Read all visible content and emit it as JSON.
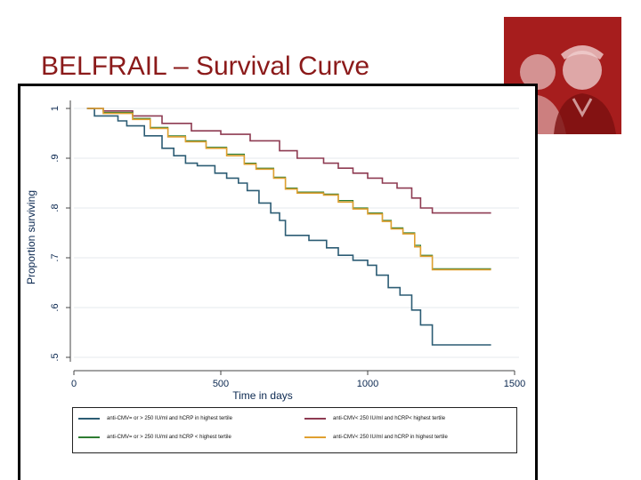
{
  "slide": {
    "title": "BELFRAIL – Survival Curve"
  },
  "photo": {
    "subject": "elderly-couple-photo",
    "tint": "#9c1a1a"
  },
  "colors": {
    "title": "#8b1a1a",
    "series_blue": "#2c5c74",
    "series_maroon": "#8e3b52",
    "series_green": "#2e7d32",
    "series_orange": "#e0a030"
  },
  "chart_data": {
    "type": "line",
    "step": true,
    "xlabel": "Time in days",
    "ylabel": "Proportion surviving",
    "xlim": [
      0,
      1500
    ],
    "ylim": [
      0.5,
      1
    ],
    "x_ticks": [
      0,
      500,
      1000,
      1500
    ],
    "y_ticks": [
      0.5,
      0.6,
      0.7,
      0.8,
      0.9,
      1
    ],
    "x_tick_labels": [
      "0",
      "500",
      "1000",
      "1500"
    ],
    "y_tick_labels": [
      ".5",
      ".6",
      ".7",
      ".8",
      ".9",
      "1"
    ],
    "grid": "horizontal",
    "legend_position": "bottom",
    "series": [
      {
        "name": "anti-CMV= or > 250 IU/ml and hCRP in highest tertile",
        "color": "#2c5c74",
        "points": [
          [
            45,
            1.0
          ],
          [
            70,
            0.985
          ],
          [
            150,
            0.975
          ],
          [
            180,
            0.965
          ],
          [
            240,
            0.945
          ],
          [
            300,
            0.92
          ],
          [
            340,
            0.905
          ],
          [
            380,
            0.89
          ],
          [
            420,
            0.885
          ],
          [
            480,
            0.87
          ],
          [
            520,
            0.86
          ],
          [
            560,
            0.85
          ],
          [
            590,
            0.835
          ],
          [
            630,
            0.81
          ],
          [
            670,
            0.79
          ],
          [
            700,
            0.775
          ],
          [
            720,
            0.745
          ],
          [
            800,
            0.735
          ],
          [
            860,
            0.72
          ],
          [
            900,
            0.705
          ],
          [
            950,
            0.695
          ],
          [
            1000,
            0.685
          ],
          [
            1030,
            0.665
          ],
          [
            1070,
            0.64
          ],
          [
            1110,
            0.625
          ],
          [
            1150,
            0.595
          ],
          [
            1180,
            0.565
          ],
          [
            1220,
            0.525
          ],
          [
            1420,
            0.525
          ]
        ]
      },
      {
        "name": "anti-CMV< 250 IU/ml and hCRP< highest tertile",
        "color": "#8e3b52",
        "points": [
          [
            45,
            1.0
          ],
          [
            100,
            0.995
          ],
          [
            200,
            0.985
          ],
          [
            300,
            0.97
          ],
          [
            400,
            0.955
          ],
          [
            500,
            0.948
          ],
          [
            600,
            0.935
          ],
          [
            700,
            0.915
          ],
          [
            760,
            0.9
          ],
          [
            850,
            0.89
          ],
          [
            900,
            0.88
          ],
          [
            950,
            0.87
          ],
          [
            1000,
            0.86
          ],
          [
            1050,
            0.85
          ],
          [
            1100,
            0.84
          ],
          [
            1150,
            0.82
          ],
          [
            1180,
            0.8
          ],
          [
            1220,
            0.79
          ],
          [
            1420,
            0.79
          ]
        ]
      },
      {
        "name": "anti-CMV= or > 250 IU/ml and hCRP < highest tertile",
        "color": "#2e7d32",
        "points": [
          [
            45,
            1.0
          ],
          [
            100,
            0.992
          ],
          [
            200,
            0.98
          ],
          [
            260,
            0.962
          ],
          [
            320,
            0.945
          ],
          [
            380,
            0.935
          ],
          [
            450,
            0.922
          ],
          [
            520,
            0.908
          ],
          [
            580,
            0.89
          ],
          [
            620,
            0.88
          ],
          [
            680,
            0.862
          ],
          [
            720,
            0.84
          ],
          [
            760,
            0.832
          ],
          [
            850,
            0.828
          ],
          [
            900,
            0.815
          ],
          [
            950,
            0.8
          ],
          [
            1000,
            0.79
          ],
          [
            1050,
            0.775
          ],
          [
            1080,
            0.76
          ],
          [
            1120,
            0.75
          ],
          [
            1160,
            0.725
          ],
          [
            1180,
            0.705
          ],
          [
            1220,
            0.678
          ],
          [
            1420,
            0.678
          ]
        ]
      },
      {
        "name": "anti-CMV< 250 IU/ml and hCRP in highest tertile",
        "color": "#e0a030",
        "points": [
          [
            45,
            1.0
          ],
          [
            100,
            0.99
          ],
          [
            200,
            0.978
          ],
          [
            260,
            0.96
          ],
          [
            320,
            0.943
          ],
          [
            380,
            0.933
          ],
          [
            450,
            0.92
          ],
          [
            520,
            0.905
          ],
          [
            580,
            0.888
          ],
          [
            620,
            0.878
          ],
          [
            680,
            0.86
          ],
          [
            720,
            0.838
          ],
          [
            760,
            0.83
          ],
          [
            850,
            0.826
          ],
          [
            900,
            0.812
          ],
          [
            950,
            0.798
          ],
          [
            1000,
            0.788
          ],
          [
            1050,
            0.773
          ],
          [
            1080,
            0.758
          ],
          [
            1120,
            0.748
          ],
          [
            1160,
            0.722
          ],
          [
            1180,
            0.703
          ],
          [
            1220,
            0.676
          ],
          [
            1420,
            0.676
          ]
        ]
      }
    ]
  }
}
